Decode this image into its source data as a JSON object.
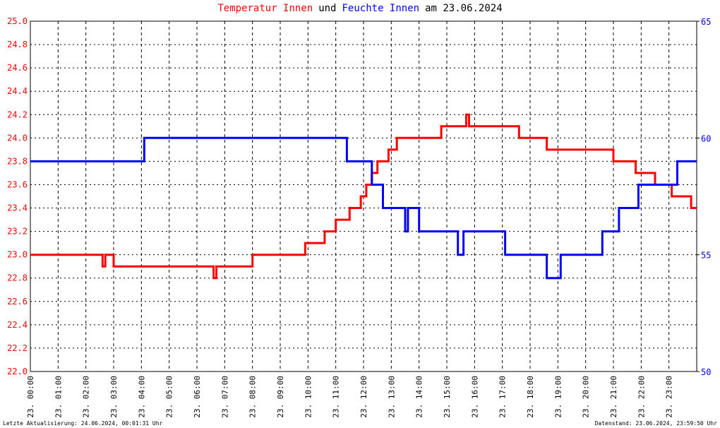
{
  "chart_data": {
    "type": "line",
    "title_parts": [
      {
        "text": "Temperatur Innen",
        "color": "#ff0000"
      },
      {
        "text": "und",
        "color": "#000000"
      },
      {
        "text": "Feuchte Innen",
        "color": "#0000ff"
      },
      {
        "text": "am 23.06.2024",
        "color": "#000000"
      }
    ],
    "footer_left": "Letzte Aktualisierung: 24.06.2024, 00:01:31 Uhr",
    "footer_right": "Datenstand: 23.06.2024, 23:59:50 Uhr",
    "xlim": [
      0,
      24
    ],
    "xticks": [
      {
        "value": 0,
        "label": "23. 00:00"
      },
      {
        "value": 1,
        "label": "23. 01:00"
      },
      {
        "value": 2,
        "label": "23. 02:00"
      },
      {
        "value": 3,
        "label": "23. 03:00"
      },
      {
        "value": 4,
        "label": "23. 04:00"
      },
      {
        "value": 5,
        "label": "23. 05:00"
      },
      {
        "value": 6,
        "label": "23. 06:00"
      },
      {
        "value": 7,
        "label": "23. 07:00"
      },
      {
        "value": 8,
        "label": "23. 08:00"
      },
      {
        "value": 9,
        "label": "23. 09:00"
      },
      {
        "value": 10,
        "label": "23. 10:00"
      },
      {
        "value": 11,
        "label": "23. 11:00"
      },
      {
        "value": 12,
        "label": "23. 12:00"
      },
      {
        "value": 13,
        "label": "23. 13:00"
      },
      {
        "value": 14,
        "label": "23. 14:00"
      },
      {
        "value": 15,
        "label": "23. 15:00"
      },
      {
        "value": 16,
        "label": "23. 16:00"
      },
      {
        "value": 17,
        "label": "23. 17:00"
      },
      {
        "value": 18,
        "label": "23. 18:00"
      },
      {
        "value": 19,
        "label": "23. 19:00"
      },
      {
        "value": 20,
        "label": "23. 20:00"
      },
      {
        "value": 21,
        "label": "23. 21:00"
      },
      {
        "value": 22,
        "label": "23. 22:00"
      },
      {
        "value": 23,
        "label": "23. 23:00"
      }
    ],
    "ylim": [
      22,
      25
    ],
    "yticks": [
      {
        "value": 22,
        "label": "22.0"
      },
      22.2,
      22.4,
      22.6,
      22.8,
      {
        "value": 23,
        "label": "23.0"
      },
      23.2,
      23.4,
      23.6,
      23.8,
      {
        "value": 24,
        "label": "24.0"
      },
      24.2,
      24.4,
      24.6,
      24.8,
      {
        "value": 25,
        "label": "25.0"
      }
    ],
    "y_color": "#ff0000",
    "y2lim": [
      50,
      65
    ],
    "y2ticks": [
      50,
      55,
      60,
      65
    ],
    "y2_color": "#0000ff",
    "grid": true,
    "series": [
      {
        "name": "Temperatur Innen",
        "color": "#ff0000",
        "x": [
          0,
          2.6,
          2.6,
          2.7,
          2.7,
          3.0,
          3.0,
          6.6,
          6.6,
          6.7,
          6.7,
          8.0,
          8.0,
          9.9,
          9.9,
          10.6,
          10.6,
          11.0,
          11.0,
          11.5,
          11.5,
          11.9,
          11.9,
          12.1,
          12.1,
          12.3,
          12.3,
          12.5,
          12.5,
          12.9,
          12.9,
          13.2,
          13.2,
          14.8,
          14.8,
          15.7,
          15.7,
          15.8,
          15.8,
          17.6,
          17.6,
          18.6,
          18.6,
          21.0,
          21.0,
          21.8,
          21.8,
          22.5,
          22.5,
          23.1,
          23.1,
          23.8,
          23.8,
          24
        ],
        "values": [
          23.0,
          23.0,
          22.9,
          22.9,
          23.0,
          23.0,
          22.9,
          22.9,
          22.8,
          22.8,
          22.9,
          22.9,
          23.0,
          23.0,
          23.1,
          23.1,
          23.2,
          23.2,
          23.3,
          23.3,
          23.4,
          23.4,
          23.5,
          23.5,
          23.6,
          23.6,
          23.7,
          23.7,
          23.8,
          23.8,
          23.9,
          23.9,
          24.0,
          24.0,
          24.1,
          24.1,
          24.2,
          24.2,
          24.1,
          24.1,
          24.0,
          24.0,
          23.9,
          23.9,
          23.8,
          23.8,
          23.7,
          23.7,
          23.6,
          23.6,
          23.5,
          23.5,
          23.4,
          23.4
        ]
      },
      {
        "name": "Feuchte Innen",
        "color": "#0000ff",
        "axis": "y2",
        "x": [
          0,
          4.1,
          4.1,
          11.4,
          11.4,
          12.3,
          12.3,
          12.7,
          12.7,
          13.5,
          13.5,
          13.6,
          13.6,
          14.0,
          14.0,
          15.4,
          15.4,
          15.6,
          15.6,
          17.1,
          17.1,
          18.6,
          18.6,
          19.1,
          19.1,
          20.6,
          20.6,
          21.2,
          21.2,
          21.9,
          21.9,
          23.3,
          23.3,
          24
        ],
        "values": [
          59,
          59,
          60,
          60,
          59,
          59,
          58,
          58,
          57,
          57,
          56,
          56,
          57,
          57,
          56,
          56,
          55,
          55,
          56,
          56,
          55,
          55,
          54,
          54,
          55,
          55,
          56,
          56,
          57,
          57,
          58,
          58,
          59,
          59
        ]
      }
    ]
  }
}
